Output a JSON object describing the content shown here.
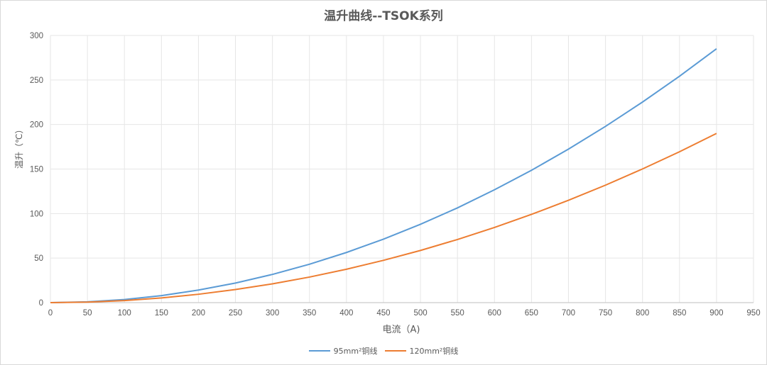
{
  "chart_data": {
    "type": "line",
    "title": "温升曲线--TSOK系列",
    "xlabel": "电流（A)",
    "ylabel": "温升（℃）",
    "xlim": [
      0,
      950
    ],
    "ylim": [
      0,
      300
    ],
    "x_ticks": [
      0,
      50,
      100,
      150,
      200,
      250,
      300,
      350,
      400,
      450,
      500,
      550,
      600,
      650,
      700,
      750,
      800,
      850,
      900,
      950
    ],
    "y_ticks": [
      0,
      50,
      100,
      150,
      200,
      250,
      300
    ],
    "grid": true,
    "legend_position": "bottom",
    "x": [
      50,
      100,
      150,
      200,
      250,
      300,
      350,
      400,
      450,
      500,
      550,
      600,
      650,
      700,
      750,
      800,
      850,
      900
    ],
    "series": [
      {
        "name": "95mm²铜线",
        "color": "#5b9bd5",
        "values": [
          0.9,
          3.5,
          7.9,
          14.1,
          22.0,
          31.7,
          43.1,
          56.3,
          71.3,
          88.0,
          106.4,
          126.7,
          148.6,
          172.4,
          197.9,
          225.2,
          254.2,
          285.0
        ]
      },
      {
        "name": "120mm²铜线",
        "color": "#ed7d31",
        "values": [
          0.6,
          2.3,
          5.3,
          9.4,
          14.7,
          21.1,
          28.7,
          37.5,
          47.5,
          58.6,
          70.9,
          84.4,
          99.1,
          114.9,
          131.9,
          150.1,
          169.4,
          190.0
        ]
      }
    ]
  }
}
